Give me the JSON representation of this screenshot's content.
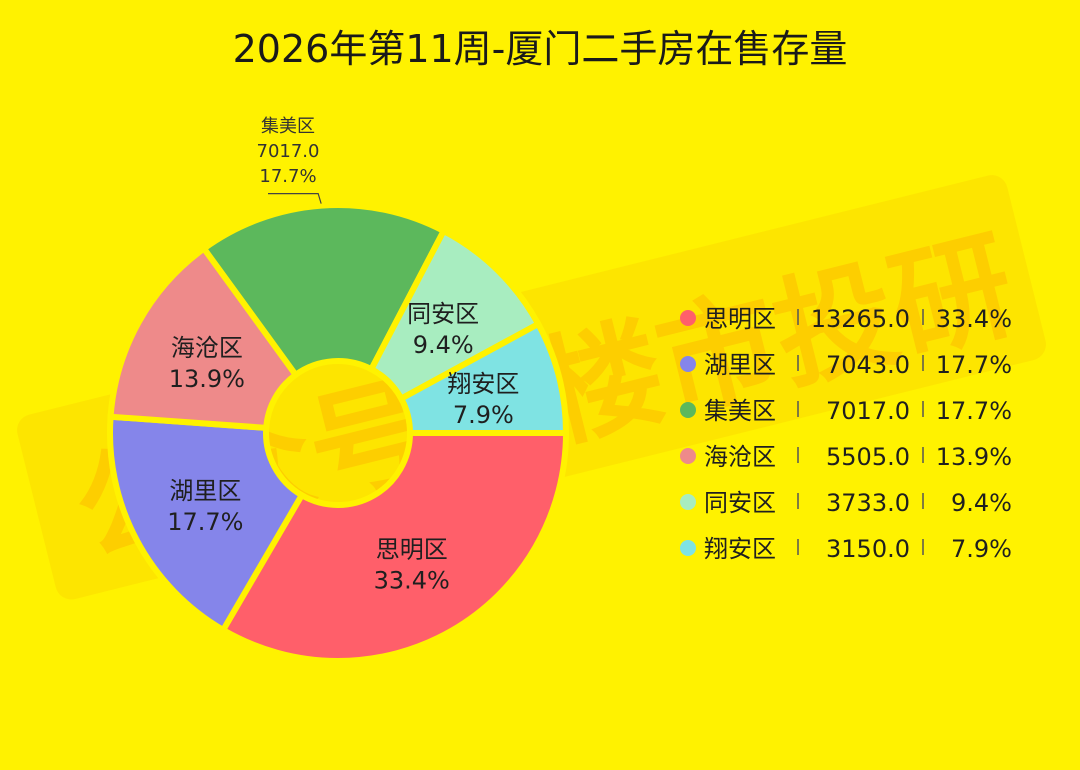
{
  "chart_data": {
    "type": "pie",
    "title": "2026年第11周-厦门二手房在售存量",
    "donut": true,
    "categories": [
      "思明区",
      "湖里区",
      "集美区",
      "海沧区",
      "同安区",
      "翔安区"
    ],
    "values": [
      13265.0,
      7043.0,
      7017.0,
      5505.0,
      3733.0,
      3150.0
    ],
    "value_labels": [
      "13265.0",
      "7043.0",
      "7017.0",
      "5505.0",
      "3733.0",
      "3150.0"
    ],
    "percents": [
      "33.4%",
      "17.7%",
      "17.7%",
      "13.9%",
      "9.4%",
      "7.9%"
    ],
    "colors": [
      "#FF5F6A",
      "#8585EA",
      "#5CB85C",
      "#EE8A8A",
      "#A8EDC0",
      "#7FE3E3"
    ],
    "legend_position": "right"
  },
  "watermark": "公众号：楼市投研"
}
